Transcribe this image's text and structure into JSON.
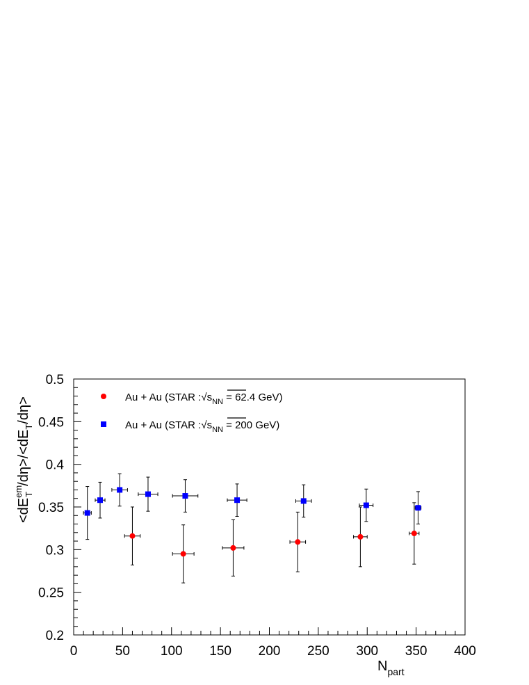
{
  "chart_data": {
    "type": "scatter",
    "xlim": [
      0,
      400
    ],
    "ylim": [
      0.2,
      0.5
    ],
    "x_ticks": [
      "0",
      "50",
      "100",
      "150",
      "200",
      "250",
      "300",
      "350",
      "400"
    ],
    "y_ticks": [
      "0.2",
      "0.25",
      "0.3",
      "0.35",
      "0.4",
      "0.45",
      "0.5"
    ],
    "xlabel": {
      "main": "N",
      "sub": "part"
    },
    "ylabel": {
      "p1": "<dE",
      "p1_sup": "em",
      "p1_sub": "T",
      "p2": "/dη>/<dE",
      "p2_sub": "T",
      "p3": "/dη>"
    },
    "legend_placement": "top-left",
    "series": [
      {
        "name": "Au + Au (STAR :√s",
        "name_sub": "NN",
        "name_end": " = 62.4 GeV)",
        "marker": "circle",
        "color": "#ff0000",
        "points": [
          {
            "x": 60,
            "y": 0.316,
            "xerr": 8,
            "yerr_lo": 0.034,
            "yerr_hi": 0.034
          },
          {
            "x": 112,
            "y": 0.295,
            "xerr": 11,
            "yerr_lo": 0.034,
            "yerr_hi": 0.034
          },
          {
            "x": 163,
            "y": 0.302,
            "xerr": 11,
            "yerr_lo": 0.033,
            "yerr_hi": 0.033
          },
          {
            "x": 229,
            "y": 0.309,
            "xerr": 8,
            "yerr_lo": 0.035,
            "yerr_hi": 0.035
          },
          {
            "x": 293,
            "y": 0.315,
            "xerr": 7,
            "yerr_lo": 0.035,
            "yerr_hi": 0.035
          },
          {
            "x": 348,
            "y": 0.319,
            "xerr": 5,
            "yerr_lo": 0.036,
            "yerr_hi": 0.036
          }
        ]
      },
      {
        "name": "Au + Au (STAR :√s",
        "name_sub": "NN",
        "name_end": " = 200 GeV)",
        "marker": "square",
        "color": "#0000ff",
        "points": [
          {
            "x": 14,
            "y": 0.343,
            "xerr": 4,
            "yerr_lo": 0.031,
            "yerr_hi": 0.031
          },
          {
            "x": 27,
            "y": 0.358,
            "xerr": 5,
            "yerr_lo": 0.021,
            "yerr_hi": 0.021
          },
          {
            "x": 47,
            "y": 0.37,
            "xerr": 8,
            "yerr_lo": 0.019,
            "yerr_hi": 0.019
          },
          {
            "x": 76,
            "y": 0.365,
            "xerr": 10,
            "yerr_lo": 0.02,
            "yerr_hi": 0.02
          },
          {
            "x": 114,
            "y": 0.363,
            "xerr": 13,
            "yerr_lo": 0.019,
            "yerr_hi": 0.019
          },
          {
            "x": 167,
            "y": 0.358,
            "xerr": 10,
            "yerr_lo": 0.019,
            "yerr_hi": 0.019
          },
          {
            "x": 235,
            "y": 0.357,
            "xerr": 8,
            "yerr_lo": 0.019,
            "yerr_hi": 0.019
          },
          {
            "x": 299,
            "y": 0.352,
            "xerr": 7,
            "yerr_lo": 0.019,
            "yerr_hi": 0.019
          },
          {
            "x": 352,
            "y": 0.349,
            "xerr": 3,
            "yerr_lo": 0.019,
            "yerr_hi": 0.019
          }
        ]
      }
    ]
  }
}
